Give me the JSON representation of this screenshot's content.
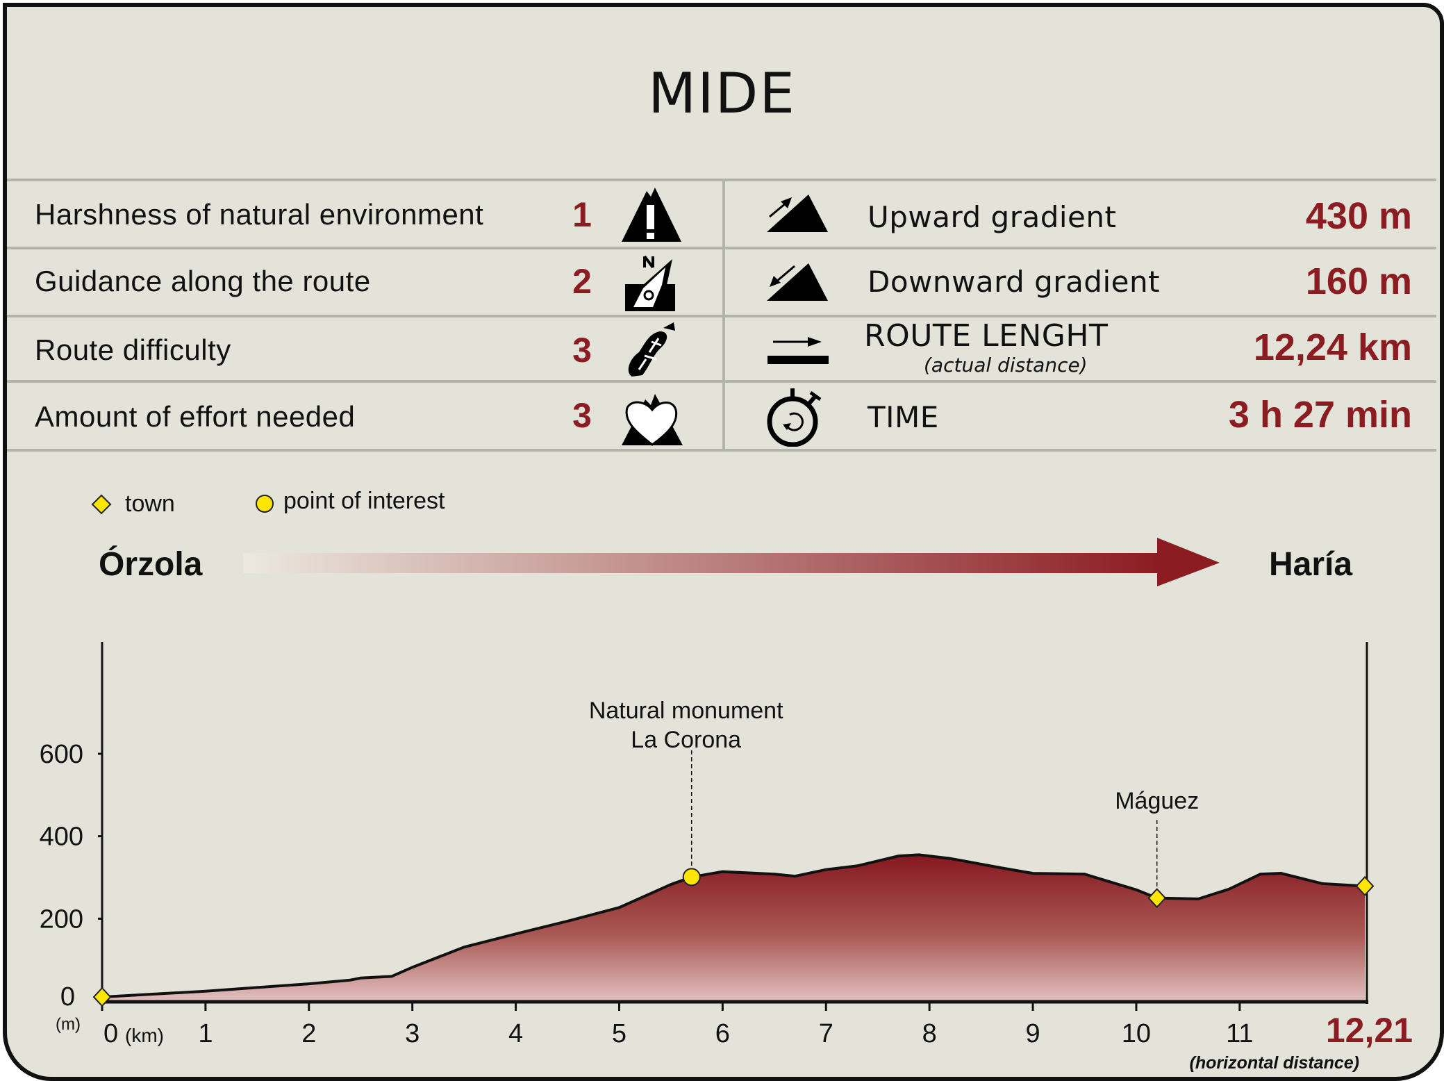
{
  "title": "MIDE",
  "mide": [
    {
      "label": "Harshness of natural environment",
      "value": "1",
      "icon": "mountain-warning-icon"
    },
    {
      "label": "Guidance along the route",
      "value": "2",
      "icon": "compass-icon"
    },
    {
      "label": "Route difficulty",
      "value": "3",
      "icon": "footprint-icon"
    },
    {
      "label": "Amount of effort needed",
      "value": "3",
      "icon": "heart-mountain-icon"
    }
  ],
  "stats": [
    {
      "label": "Upward gradient",
      "value": "430 m",
      "icon": "upward-gradient-icon"
    },
    {
      "label": "Downward gradient",
      "value": "160 m",
      "icon": "downward-gradient-icon"
    },
    {
      "label": "ROUTE LENGHT",
      "sublabel": "(actual distance)",
      "value": "12,24 km",
      "icon": "distance-icon"
    },
    {
      "label": "TIME",
      "value": "3 h 27 min",
      "icon": "stopwatch-icon"
    }
  ],
  "legend": {
    "town": "town",
    "poi": "point of interest"
  },
  "route": {
    "start": "Órzola",
    "end": "Haría"
  },
  "colors": {
    "accent": "#8b1c22",
    "background": "#e3e3da",
    "marker": "#ffe600"
  },
  "chart_data": {
    "type": "area",
    "x_unit": "(km)",
    "y_unit": "(m)",
    "x_ticks": [
      "0",
      "1",
      "2",
      "3",
      "4",
      "5",
      "6",
      "7",
      "8",
      "9",
      "10",
      "11"
    ],
    "x_end_label": "12,21",
    "x_note": "(horizontal distance)",
    "y_ticks": [
      "0",
      "200",
      "400",
      "600"
    ],
    "xlim": [
      0,
      12.21
    ],
    "ylim": [
      0,
      800
    ],
    "profile": [
      [
        0,
        10
      ],
      [
        0.5,
        17
      ],
      [
        1,
        24
      ],
      [
        1.5,
        33
      ],
      [
        2,
        42
      ],
      [
        2.4,
        51
      ],
      [
        2.5,
        56
      ],
      [
        2.8,
        60
      ],
      [
        3,
        82
      ],
      [
        3.5,
        131
      ],
      [
        4,
        163
      ],
      [
        4.5,
        194
      ],
      [
        5,
        227
      ],
      [
        5.5,
        283
      ],
      [
        5.7,
        301
      ],
      [
        6,
        314
      ],
      [
        6.5,
        308
      ],
      [
        6.7,
        303
      ],
      [
        7,
        319
      ],
      [
        7.3,
        328
      ],
      [
        7.7,
        352
      ],
      [
        7.9,
        355
      ],
      [
        8.2,
        346
      ],
      [
        8.7,
        323
      ],
      [
        9,
        310
      ],
      [
        9.5,
        308
      ],
      [
        10,
        270
      ],
      [
        10.2,
        250
      ],
      [
        10.6,
        248
      ],
      [
        10.9,
        272
      ],
      [
        11.2,
        308
      ],
      [
        11.4,
        310
      ],
      [
        11.8,
        285
      ],
      [
        12.21,
        279
      ]
    ],
    "towns": [
      {
        "km": 0,
        "m": 10,
        "name": ""
      },
      {
        "km": 10.2,
        "m": 250,
        "name": "Máguez"
      },
      {
        "km": 12.21,
        "m": 279,
        "name": ""
      }
    ],
    "points_of_interest": [
      {
        "km": 5.7,
        "m": 301,
        "name_lines": [
          "Natural monument",
          "La Corona"
        ]
      }
    ]
  }
}
